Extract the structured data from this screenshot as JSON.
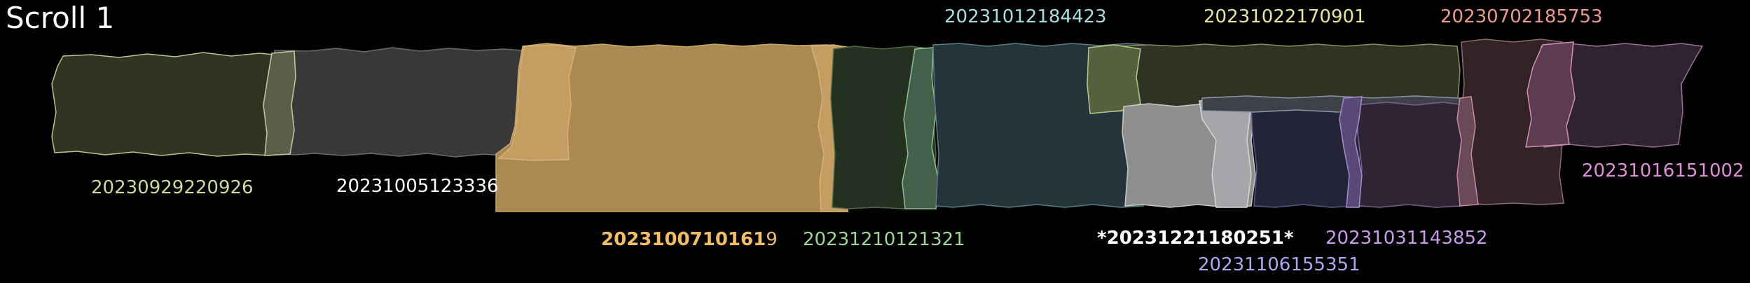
{
  "title": "Scroll 1",
  "labels": {
    "l0929": "20230929220926",
    "l1005": "20231005123336",
    "l1007a": "2023100710161",
    "l1007b": "9",
    "l1210": "20231210121321",
    "l1012": "20231012184423",
    "l1022": "20231022170901",
    "l0702": "20230702185753",
    "l1016": "20231016151002",
    "l1221": "*20231221180251*",
    "l1031": "20231031143852",
    "l1106": "20231106155351"
  },
  "colors": {
    "background": "#000000",
    "l0929": "#c9dc9a",
    "l1005": "#ffffff",
    "l1007": "#f2bd68",
    "l1210": "#9fd69a",
    "l1012": "#a8dde0",
    "l1022": "#e6e6a2",
    "l0702": "#ea9a8e",
    "l1016": "#dd8fd6",
    "l1221": "#ffffff",
    "l1031": "#c79be8",
    "l1106": "#a9a9ee"
  }
}
